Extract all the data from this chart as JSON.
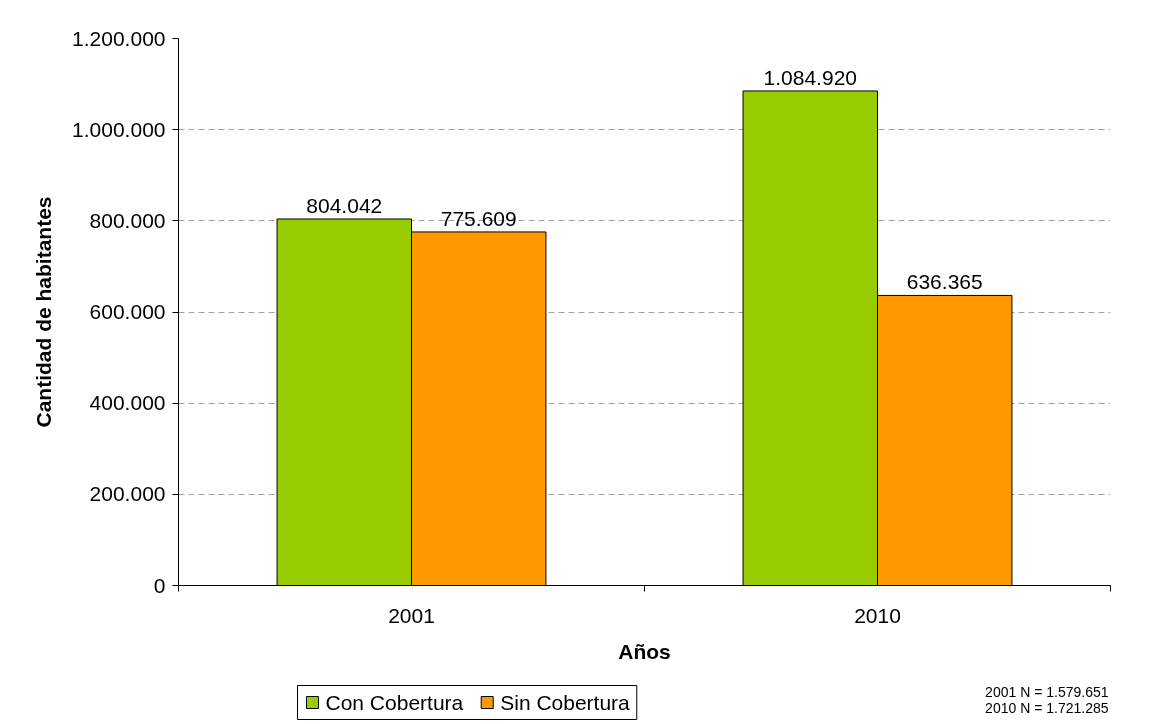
{
  "chart_data": {
    "type": "bar",
    "xlabel": "Años",
    "ylabel": "Cantidad de habitantes",
    "categories": [
      "2001",
      "2010"
    ],
    "series": [
      {
        "name": "Con Cobertura",
        "color": "#99cc00",
        "values": [
          804042,
          1084920
        ],
        "value_labels": [
          "804.042",
          "1.084.920"
        ]
      },
      {
        "name": "Sin Cobertura",
        "color": "#ff9900",
        "values": [
          775609,
          636365
        ],
        "value_labels": [
          "775.609",
          "636.365"
        ]
      }
    ],
    "ylim": [
      0,
      1200000
    ],
    "yticks": [
      0,
      {
        "value": 200000,
        "label": "200.000"
      },
      {
        "value": 400000,
        "label": "400.000"
      },
      {
        "value": 600000,
        "label": "600.000"
      },
      {
        "value": 800000,
        "label": "800.000"
      },
      {
        "value": 1000000,
        "label": "1.000.000"
      },
      {
        "value": 1200000,
        "label": "1.200.000"
      }
    ],
    "grid": "y",
    "legend": "bottom",
    "annotations": [
      "2001 N = 1.579.651",
      "2010 N = 1.721.285"
    ]
  }
}
